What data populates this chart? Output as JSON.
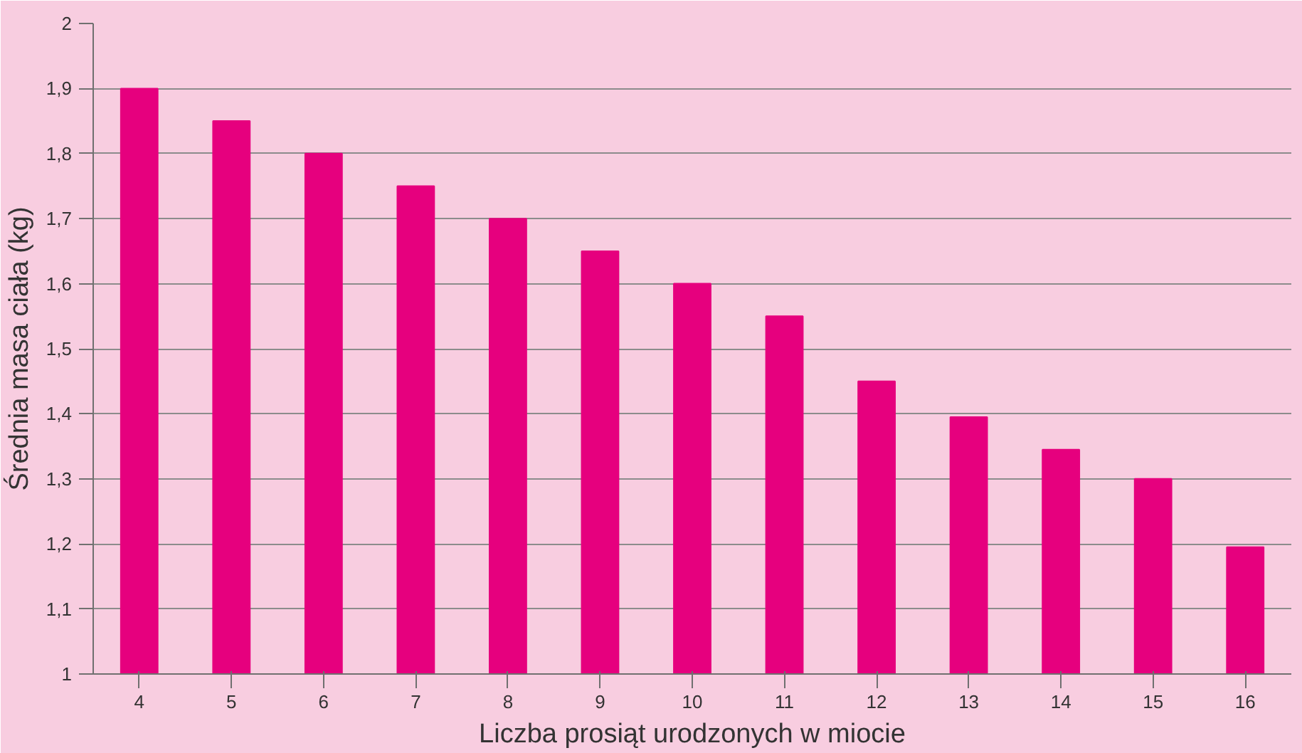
{
  "chart_data": {
    "type": "bar",
    "xlabel": "Liczba prosiąt urodzonych w miocie",
    "ylabel": "Średnia masa ciała (kg)",
    "categories": [
      "4",
      "5",
      "6",
      "7",
      "8",
      "9",
      "10",
      "11",
      "12",
      "13",
      "14",
      "15",
      "16"
    ],
    "values": [
      1.9,
      1.85,
      1.8,
      1.75,
      1.7,
      1.65,
      1.6,
      1.55,
      1.45,
      1.395,
      1.345,
      1.3,
      1.195
    ],
    "color": "#e6007e",
    "ylim": [
      1,
      2
    ],
    "yticks": [
      {
        "value": 1,
        "label": "1"
      },
      {
        "value": 1.1,
        "label": "1,1"
      },
      {
        "value": 1.2,
        "label": "1,2"
      },
      {
        "value": 1.3,
        "label": "1,3"
      },
      {
        "value": 1.4,
        "label": "1,4"
      },
      {
        "value": 1.5,
        "label": "1,5"
      },
      {
        "value": 1.6,
        "label": "1,6"
      },
      {
        "value": 1.7,
        "label": "1,7"
      },
      {
        "value": 1.8,
        "label": "1,8"
      },
      {
        "value": 1.9,
        "label": "1,9"
      },
      {
        "value": 2,
        "label": "2"
      }
    ],
    "grid": "y"
  }
}
